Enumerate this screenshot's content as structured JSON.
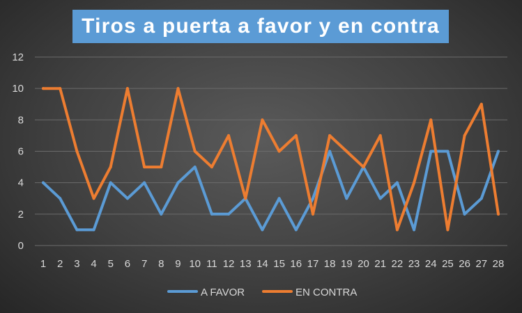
{
  "chart_data": {
    "type": "line",
    "title": "Tiros a puerta a favor y en contra",
    "xlabel": "",
    "ylabel": "",
    "x": [
      1,
      2,
      3,
      4,
      5,
      6,
      7,
      8,
      9,
      10,
      11,
      12,
      13,
      14,
      15,
      16,
      17,
      18,
      19,
      20,
      21,
      22,
      23,
      24,
      25,
      26,
      27,
      28
    ],
    "ylim": [
      0,
      12
    ],
    "yticks": [
      0,
      2,
      4,
      6,
      8,
      10,
      12
    ],
    "grid": true,
    "legend": "bottom",
    "series": [
      {
        "name": "A FAVOR",
        "color": "#5b9bd5",
        "values": [
          4,
          3,
          1,
          1,
          4,
          3,
          4,
          2,
          4,
          5,
          2,
          2,
          3,
          1,
          3,
          1,
          3,
          6,
          3,
          5,
          3,
          4,
          1,
          6,
          6,
          2,
          3,
          6
        ]
      },
      {
        "name": "EN CONTRA",
        "color": "#ed7d31",
        "values": [
          10,
          10,
          6,
          3,
          5,
          10,
          5,
          5,
          10,
          6,
          5,
          7,
          3,
          8,
          6,
          7,
          2,
          7,
          6,
          5,
          7,
          1,
          4,
          8,
          1,
          7,
          9,
          2
        ]
      }
    ]
  }
}
